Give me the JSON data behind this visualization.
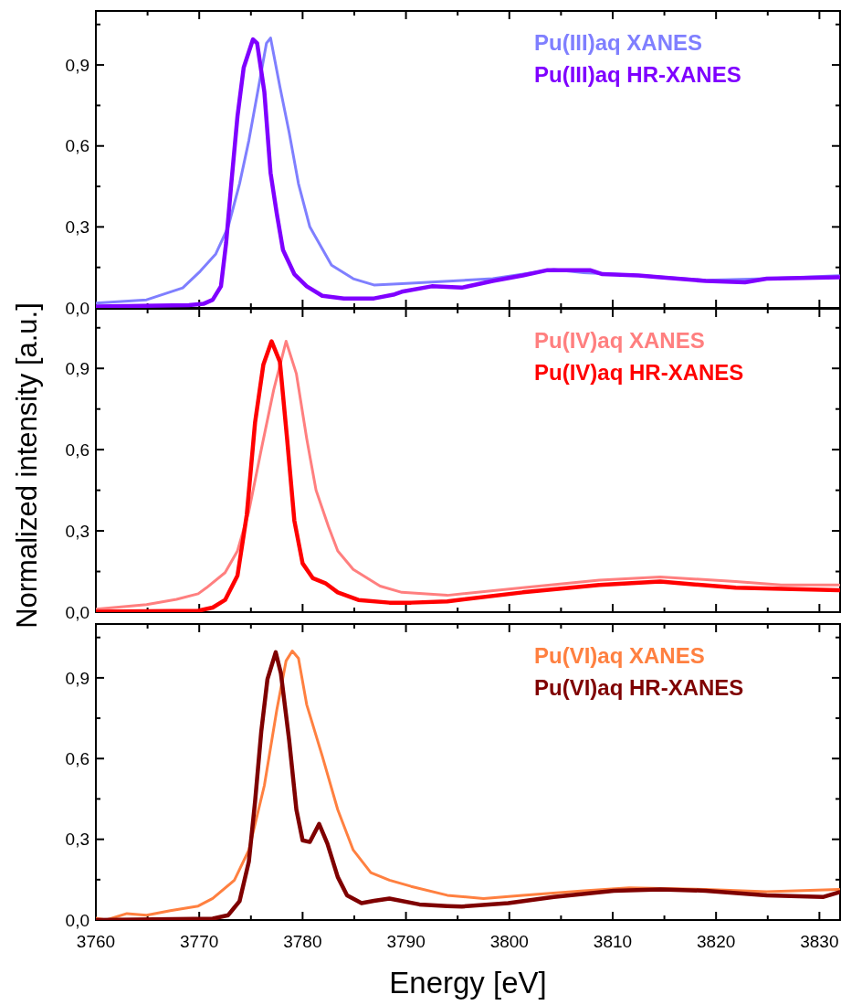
{
  "chart_data": [
    {
      "type": "line",
      "xlim": [
        3760,
        3832
      ],
      "xticks": [
        3760,
        {
          "value": 3765,
          "label": null
        },
        3770,
        {
          "value": 3775,
          "label": null
        },
        3780,
        {
          "value": 3785,
          "label": null
        },
        3790,
        {
          "value": 3795,
          "label": null
        },
        3800,
        {
          "value": 3805,
          "label": null
        },
        3810,
        {
          "value": 3815,
          "label": null
        },
        3820,
        {
          "value": 3825,
          "label": null
        },
        3830
      ],
      "ylim": [
        0,
        1.1
      ],
      "yticks": [
        {
          "value": 0,
          "label": "0,0"
        },
        {
          "value": 0.15,
          "label": null
        },
        {
          "value": 0.3,
          "label": "0,3"
        },
        {
          "value": 0.45,
          "label": null
        },
        {
          "value": 0.6,
          "label": "0,6"
        },
        {
          "value": 0.75,
          "label": null
        },
        {
          "value": 0.9,
          "label": "0,9"
        },
        {
          "value": 1.05,
          "label": null
        }
      ],
      "tick_labels": "y",
      "legend": "top right",
      "grid": false,
      "marker": "none",
      "line_style": "solid",
      "series": [
        {
          "name": "Pu(III)aq XANES",
          "color": "#7f7fff",
          "x": [
            3760,
            3764.9,
            3768.4,
            3770.1,
            3771.6,
            3772.8,
            3773.9,
            3774.8,
            3775.7,
            3776.5,
            3776.9,
            3777.8,
            3778.7,
            3779.6,
            3780.7,
            3782.8,
            3784.9,
            3786.9,
            3789.6,
            3798.4,
            3804.3,
            3807.2,
            3813.1,
            3819,
            3824.9,
            3831.9
          ],
          "values": [
            0.018,
            0.03,
            0.074,
            0.136,
            0.2,
            0.3,
            0.46,
            0.62,
            0.81,
            0.98,
            1.0,
            0.82,
            0.65,
            0.46,
            0.3,
            0.158,
            0.108,
            0.085,
            0.09,
            0.108,
            0.142,
            0.13,
            0.119,
            0.102,
            0.108,
            0.119
          ]
        },
        {
          "name": "Pu(III)aq HR-XANES",
          "color": "#7f00ff",
          "x": [
            3760,
            3769,
            3770.4,
            3771.3,
            3772.1,
            3772.6,
            3773.1,
            3773.7,
            3774.3,
            3775.2,
            3775.6,
            3776.3,
            3776.9,
            3777.5,
            3778.1,
            3779.2,
            3780.4,
            3781.9,
            3784,
            3786.9,
            3788.9,
            3789.6,
            3792.5,
            3795.4,
            3798.4,
            3801.3,
            3803.7,
            3806,
            3807.8,
            3809,
            3812.5,
            3814.6,
            3819,
            3822.8,
            3824.9,
            3831.9
          ],
          "values": [
            0.005,
            0.01,
            0.015,
            0.03,
            0.08,
            0.24,
            0.46,
            0.71,
            0.89,
            0.995,
            0.98,
            0.8,
            0.5,
            0.35,
            0.215,
            0.125,
            0.08,
            0.045,
            0.035,
            0.035,
            0.05,
            0.06,
            0.08,
            0.075,
            0.1,
            0.12,
            0.14,
            0.14,
            0.14,
            0.125,
            0.12,
            0.113,
            0.1,
            0.095,
            0.108,
            0.113
          ]
        }
      ]
    },
    {
      "type": "line",
      "xlim": [
        3760,
        3832
      ],
      "xticks": [
        3760,
        {
          "value": 3765,
          "label": null
        },
        3770,
        {
          "value": 3775,
          "label": null
        },
        3780,
        {
          "value": 3785,
          "label": null
        },
        3790,
        {
          "value": 3795,
          "label": null
        },
        3800,
        {
          "value": 3805,
          "label": null
        },
        3810,
        {
          "value": 3815,
          "label": null
        },
        3820,
        {
          "value": 3825,
          "label": null
        },
        3830
      ],
      "ylim": [
        0,
        1.12
      ],
      "yticks": [
        {
          "value": 0,
          "label": "0,0"
        },
        {
          "value": 0.15,
          "label": null
        },
        {
          "value": 0.3,
          "label": "0,3"
        },
        {
          "value": 0.45,
          "label": null
        },
        {
          "value": 0.6,
          "label": "0,6"
        },
        {
          "value": 0.75,
          "label": null
        },
        {
          "value": 0.9,
          "label": "0,9"
        },
        {
          "value": 1.05,
          "label": null
        }
      ],
      "tick_labels": "y",
      "legend": "top right",
      "grid": false,
      "marker": "none",
      "line_style": "solid",
      "ylabel": "Normalized intensity [a.u.]",
      "series": [
        {
          "name": "Pu(IV)aq XANES",
          "color": "#ff7f7f",
          "x": [
            3760,
            3764.9,
            3767.8,
            3769.9,
            3770.7,
            3772.5,
            3773.7,
            3774.8,
            3776,
            3777.2,
            3778.4,
            3779.4,
            3780.4,
            3781.3,
            3782.5,
            3783.4,
            3784.9,
            3787.5,
            3789.6,
            3794,
            3801.3,
            3808.7,
            3814.6,
            3821.9,
            3826.3,
            3831.9
          ],
          "values": [
            0.011,
            0.028,
            0.047,
            0.068,
            0.09,
            0.146,
            0.226,
            0.372,
            0.6,
            0.82,
            1.0,
            0.88,
            0.64,
            0.45,
            0.316,
            0.226,
            0.158,
            0.096,
            0.073,
            0.062,
            0.09,
            0.118,
            0.13,
            0.113,
            0.1,
            0.1
          ]
        },
        {
          "name": "Pu(IV)aq HR-XANES",
          "color": "#ff0000",
          "x": [
            3760,
            3769.9,
            3771.3,
            3772.5,
            3773.7,
            3774.6,
            3775.4,
            3776.2,
            3777,
            3777.8,
            3778.5,
            3779.2,
            3780,
            3781,
            3782.2,
            3783.4,
            3785.4,
            3788.4,
            3790.5,
            3794,
            3801.3,
            3808.7,
            3814.6,
            3821.9,
            3831.9
          ],
          "values": [
            0.002,
            0.005,
            0.017,
            0.045,
            0.135,
            0.36,
            0.7,
            0.913,
            1.0,
            0.925,
            0.64,
            0.338,
            0.18,
            0.125,
            0.107,
            0.073,
            0.045,
            0.035,
            0.035,
            0.04,
            0.073,
            0.1,
            0.113,
            0.09,
            0.081
          ]
        }
      ]
    },
    {
      "type": "line",
      "xlim": [
        3760,
        3832
      ],
      "xticks": [
        3760,
        {
          "value": 3765,
          "label": null
        },
        3770,
        {
          "value": 3775,
          "label": null
        },
        3780,
        {
          "value": 3785,
          "label": null
        },
        3790,
        {
          "value": 3795,
          "label": null
        },
        3800,
        {
          "value": 3805,
          "label": null
        },
        3810,
        {
          "value": 3815,
          "label": null
        },
        3820,
        {
          "value": 3825,
          "label": null
        },
        3830
      ],
      "ylim": [
        0,
        1.1
      ],
      "yticks": [
        {
          "value": 0,
          "label": "0,0"
        },
        {
          "value": 0.15,
          "label": null
        },
        {
          "value": 0.3,
          "label": "0,3"
        },
        {
          "value": 0.45,
          "label": null
        },
        {
          "value": 0.6,
          "label": "0,6"
        },
        {
          "value": 0.75,
          "label": null
        },
        {
          "value": 0.9,
          "label": "0,9"
        },
        {
          "value": 1.05,
          "label": null
        }
      ],
      "legend": "top right",
      "grid": false,
      "marker": "none",
      "line_style": "solid",
      "xlabel": "Energy [eV]",
      "series": [
        {
          "name": "Pu(VI)aq XANES",
          "color": "#ff8040",
          "x": [
            3760,
            3761,
            3763,
            3764.9,
            3767.2,
            3769.9,
            3771.3,
            3773.4,
            3774.8,
            3776.3,
            3777.5,
            3778.4,
            3779,
            3779.6,
            3780.4,
            3781.9,
            3783.4,
            3784.9,
            3786.6,
            3788.4,
            3790.5,
            3794,
            3797.5,
            3801.3,
            3807.2,
            3811.6,
            3819,
            3824.9,
            3831.9
          ],
          "values": [
            0.007,
            0.0,
            0.024,
            0.018,
            0.035,
            0.052,
            0.08,
            0.148,
            0.26,
            0.5,
            0.78,
            0.963,
            1.0,
            0.973,
            0.8,
            0.61,
            0.41,
            0.26,
            0.176,
            0.148,
            0.125,
            0.092,
            0.08,
            0.092,
            0.109,
            0.12,
            0.114,
            0.105,
            0.114
          ]
        },
        {
          "name": "Pu(VI)aq HR-XANES",
          "color": "#7f0000",
          "x": [
            3760,
            3771.3,
            3772.8,
            3773.9,
            3774.8,
            3775.4,
            3776,
            3776.6,
            3777.4,
            3777.9,
            3778.7,
            3779.4,
            3780,
            3780.7,
            3781.6,
            3782.4,
            3783.4,
            3784.3,
            3785.7,
            3786.9,
            3788.4,
            3791.3,
            3794,
            3795.4,
            3799.9,
            3804.3,
            3810.1,
            3814.6,
            3819,
            3824.9,
            3830.4,
            3831.9
          ],
          "values": [
            0.0,
            0.005,
            0.018,
            0.07,
            0.217,
            0.44,
            0.7,
            0.895,
            0.995,
            0.917,
            0.668,
            0.41,
            0.296,
            0.29,
            0.357,
            0.284,
            0.16,
            0.092,
            0.063,
            0.071,
            0.08,
            0.058,
            0.052,
            0.05,
            0.063,
            0.086,
            0.109,
            0.114,
            0.109,
            0.092,
            0.086,
            0.103
          ]
        }
      ]
    }
  ]
}
